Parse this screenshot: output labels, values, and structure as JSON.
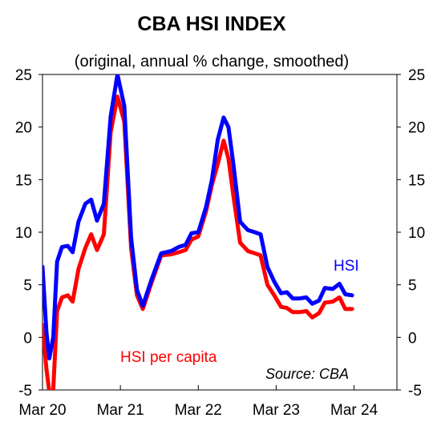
{
  "chart_data": {
    "type": "line",
    "title": "CBA HSI INDEX",
    "subtitle": "(original, annual % change, smoothed)",
    "source": "Source: CBA",
    "x_tick_labels": [
      "Mar 20",
      "Mar 21",
      "Mar 22",
      "Mar 23",
      "Mar 24"
    ],
    "ylim": [
      -5,
      25
    ],
    "y_ticks": [
      -5,
      0,
      5,
      10,
      15,
      20,
      25
    ],
    "y_tick_labels": [
      "-5",
      "0",
      "5",
      "10",
      "15",
      "20",
      "25"
    ],
    "grid": false,
    "colors": {
      "HSI": "#0000ff",
      "HSI per capita": "#ff0000"
    },
    "series": [
      {
        "name": "HSI",
        "label_text": "HSI",
        "points": [
          [
            0.0,
            6.7
          ],
          [
            0.2,
            0.5
          ],
          [
            0.35,
            -2.0
          ],
          [
            0.55,
            0.0
          ],
          [
            0.75,
            7.2
          ],
          [
            1.0,
            8.6
          ],
          [
            1.3,
            8.7
          ],
          [
            1.55,
            8.1
          ],
          [
            1.85,
            11.0
          ],
          [
            2.2,
            12.7
          ],
          [
            2.5,
            13.1
          ],
          [
            2.8,
            11.1
          ],
          [
            3.15,
            12.7
          ],
          [
            3.5,
            21.0
          ],
          [
            3.85,
            25.0
          ],
          [
            4.2,
            22.0
          ],
          [
            4.55,
            9.5
          ],
          [
            4.85,
            4.5
          ],
          [
            5.15,
            3.0
          ],
          [
            5.6,
            5.5
          ],
          [
            6.1,
            8.0
          ],
          [
            6.6,
            8.2
          ],
          [
            7.0,
            8.6
          ],
          [
            7.35,
            8.8
          ],
          [
            7.65,
            9.9
          ],
          [
            8.0,
            10.0
          ],
          [
            8.4,
            12.4
          ],
          [
            8.7,
            15.0
          ],
          [
            9.0,
            18.8
          ],
          [
            9.3,
            20.9
          ],
          [
            9.55,
            20.0
          ],
          [
            9.8,
            16.5
          ],
          [
            10.15,
            11.0
          ],
          [
            10.55,
            10.2
          ],
          [
            10.9,
            10.0
          ],
          [
            11.2,
            9.8
          ],
          [
            11.55,
            6.7
          ],
          [
            11.9,
            5.3
          ],
          [
            12.25,
            4.2
          ],
          [
            12.55,
            4.3
          ],
          [
            12.85,
            3.7
          ],
          [
            13.2,
            3.7
          ],
          [
            13.55,
            3.8
          ],
          [
            13.85,
            3.2
          ],
          [
            14.2,
            3.5
          ],
          [
            14.5,
            4.7
          ],
          [
            14.9,
            4.6
          ],
          [
            15.25,
            5.1
          ],
          [
            15.55,
            4.1
          ],
          [
            15.9,
            4.0
          ]
        ]
      },
      {
        "name": "HSI per capita",
        "label_text": "HSI per capita",
        "points": [
          [
            0.0,
            1.2
          ],
          [
            0.2,
            -3.0
          ],
          [
            0.35,
            -5.2
          ],
          [
            0.55,
            -5.0
          ],
          [
            0.75,
            2.5
          ],
          [
            1.0,
            3.8
          ],
          [
            1.3,
            4.0
          ],
          [
            1.55,
            3.4
          ],
          [
            1.85,
            6.5
          ],
          [
            2.2,
            8.5
          ],
          [
            2.5,
            9.8
          ],
          [
            2.8,
            8.3
          ],
          [
            3.15,
            9.8
          ],
          [
            3.5,
            19.5
          ],
          [
            3.85,
            22.9
          ],
          [
            4.2,
            20.5
          ],
          [
            4.55,
            8.5
          ],
          [
            4.85,
            4.0
          ],
          [
            5.15,
            2.7
          ],
          [
            5.6,
            5.2
          ],
          [
            6.1,
            7.8
          ],
          [
            6.6,
            7.9
          ],
          [
            7.0,
            8.1
          ],
          [
            7.35,
            8.3
          ],
          [
            7.65,
            9.3
          ],
          [
            8.0,
            9.6
          ],
          [
            8.4,
            12.0
          ],
          [
            8.7,
            14.5
          ],
          [
            9.0,
            16.5
          ],
          [
            9.3,
            18.7
          ],
          [
            9.55,
            17.0
          ],
          [
            9.8,
            13.5
          ],
          [
            10.15,
            9.0
          ],
          [
            10.55,
            8.2
          ],
          [
            10.9,
            8.0
          ],
          [
            11.2,
            7.8
          ],
          [
            11.55,
            5.0
          ],
          [
            11.9,
            4.0
          ],
          [
            12.25,
            2.9
          ],
          [
            12.55,
            2.8
          ],
          [
            12.85,
            2.4
          ],
          [
            13.2,
            2.4
          ],
          [
            13.55,
            2.5
          ],
          [
            13.85,
            1.9
          ],
          [
            14.2,
            2.3
          ],
          [
            14.5,
            3.3
          ],
          [
            14.9,
            3.4
          ],
          [
            15.25,
            3.8
          ],
          [
            15.55,
            2.7
          ],
          [
            15.9,
            2.7
          ]
        ]
      }
    ]
  }
}
